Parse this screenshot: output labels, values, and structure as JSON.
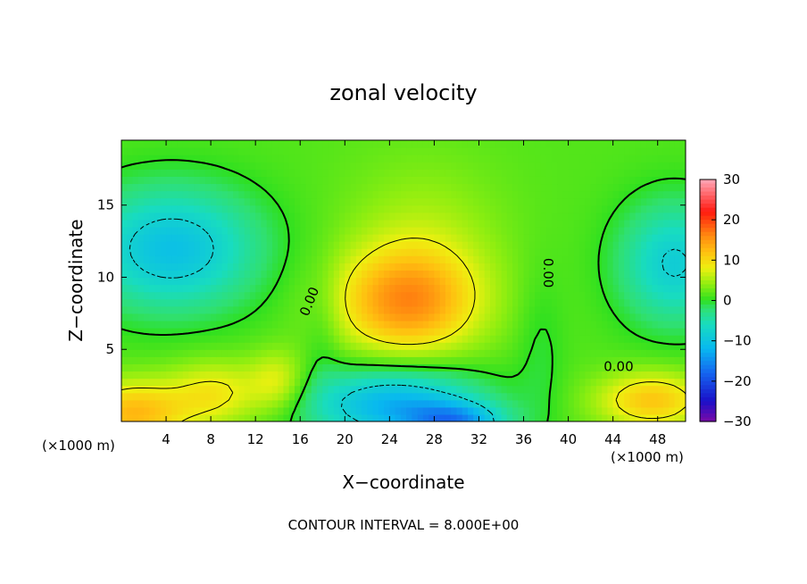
{
  "chart_data": {
    "type": "heatmap",
    "title": "zonal velocity",
    "xlabel": "X−coordinate",
    "ylabel": "Z−coordinate",
    "x_unit_left": "(×1000 m)",
    "x_unit_right": "(×1000 m)",
    "footer": "CONTOUR INTERVAL = 8.000E+00",
    "xlim": [
      0,
      50.5
    ],
    "ylim": [
      0,
      19.5
    ],
    "x_ticks": [
      4,
      8,
      12,
      16,
      20,
      24,
      28,
      32,
      36,
      40,
      44,
      48
    ],
    "y_ticks": [
      5,
      10,
      15
    ],
    "colorbar": {
      "range": [
        -30,
        30
      ],
      "ticks": [
        30,
        20,
        10,
        0,
        -10,
        -20,
        -30
      ],
      "stops": [
        {
          "value": -30,
          "color": "#7a0aa8"
        },
        {
          "value": -25,
          "color": "#1a10c8"
        },
        {
          "value": -18,
          "color": "#1565f0"
        },
        {
          "value": -12,
          "color": "#08b8f0"
        },
        {
          "value": -6,
          "color": "#18dcc0"
        },
        {
          "value": -2,
          "color": "#30e070"
        },
        {
          "value": 0,
          "color": "#2ee020"
        },
        {
          "value": 4,
          "color": "#90ee10"
        },
        {
          "value": 8,
          "color": "#eef010"
        },
        {
          "value": 12,
          "color": "#ffc010"
        },
        {
          "value": 16,
          "color": "#ff8a10"
        },
        {
          "value": 22,
          "color": "#ff1a10"
        },
        {
          "value": 30,
          "color": "#ffa8b8"
        }
      ]
    },
    "field": {
      "background": 1.5,
      "blobs": [
        {
          "x": 25.5,
          "z": 8.3,
          "sx": 4.5,
          "sz": 2.6,
          "amp": 13
        },
        {
          "x": 27.0,
          "z": 12.5,
          "sx": 5.0,
          "sz": 4.0,
          "amp": 3.5
        },
        {
          "x": 1.0,
          "z": 0.6,
          "sx": 3.5,
          "sz": 1.6,
          "amp": 11
        },
        {
          "x": 8.5,
          "z": 2.0,
          "sx": 3.0,
          "sz": 1.6,
          "amp": 7
        },
        {
          "x": 14.0,
          "z": 2.8,
          "sx": 1.8,
          "sz": 1.5,
          "amp": 6
        },
        {
          "x": 47.5,
          "z": 1.5,
          "sx": 3.5,
          "sz": 1.4,
          "amp": 10
        },
        {
          "x": 4.5,
          "z": 12.0,
          "sx": 5.5,
          "sz": 3.0,
          "amp": -12
        },
        {
          "x": 49.5,
          "z": 11.0,
          "sx": 3.5,
          "sz": 3.0,
          "amp": -10
        },
        {
          "x": 24.5,
          "z": 1.2,
          "sx": 5.5,
          "sz": 1.8,
          "amp": -14
        },
        {
          "x": 30.0,
          "z": 0.0,
          "sx": 3.0,
          "sz": 0.9,
          "amp": -12
        },
        {
          "x": 18.0,
          "z": 6.5,
          "sx": 1.2,
          "sz": 3.0,
          "amp": -2
        },
        {
          "x": 37.5,
          "z": 5.0,
          "sx": 1.5,
          "sz": 4.0,
          "amp": -2
        }
      ]
    },
    "contour_label": "0.00"
  }
}
